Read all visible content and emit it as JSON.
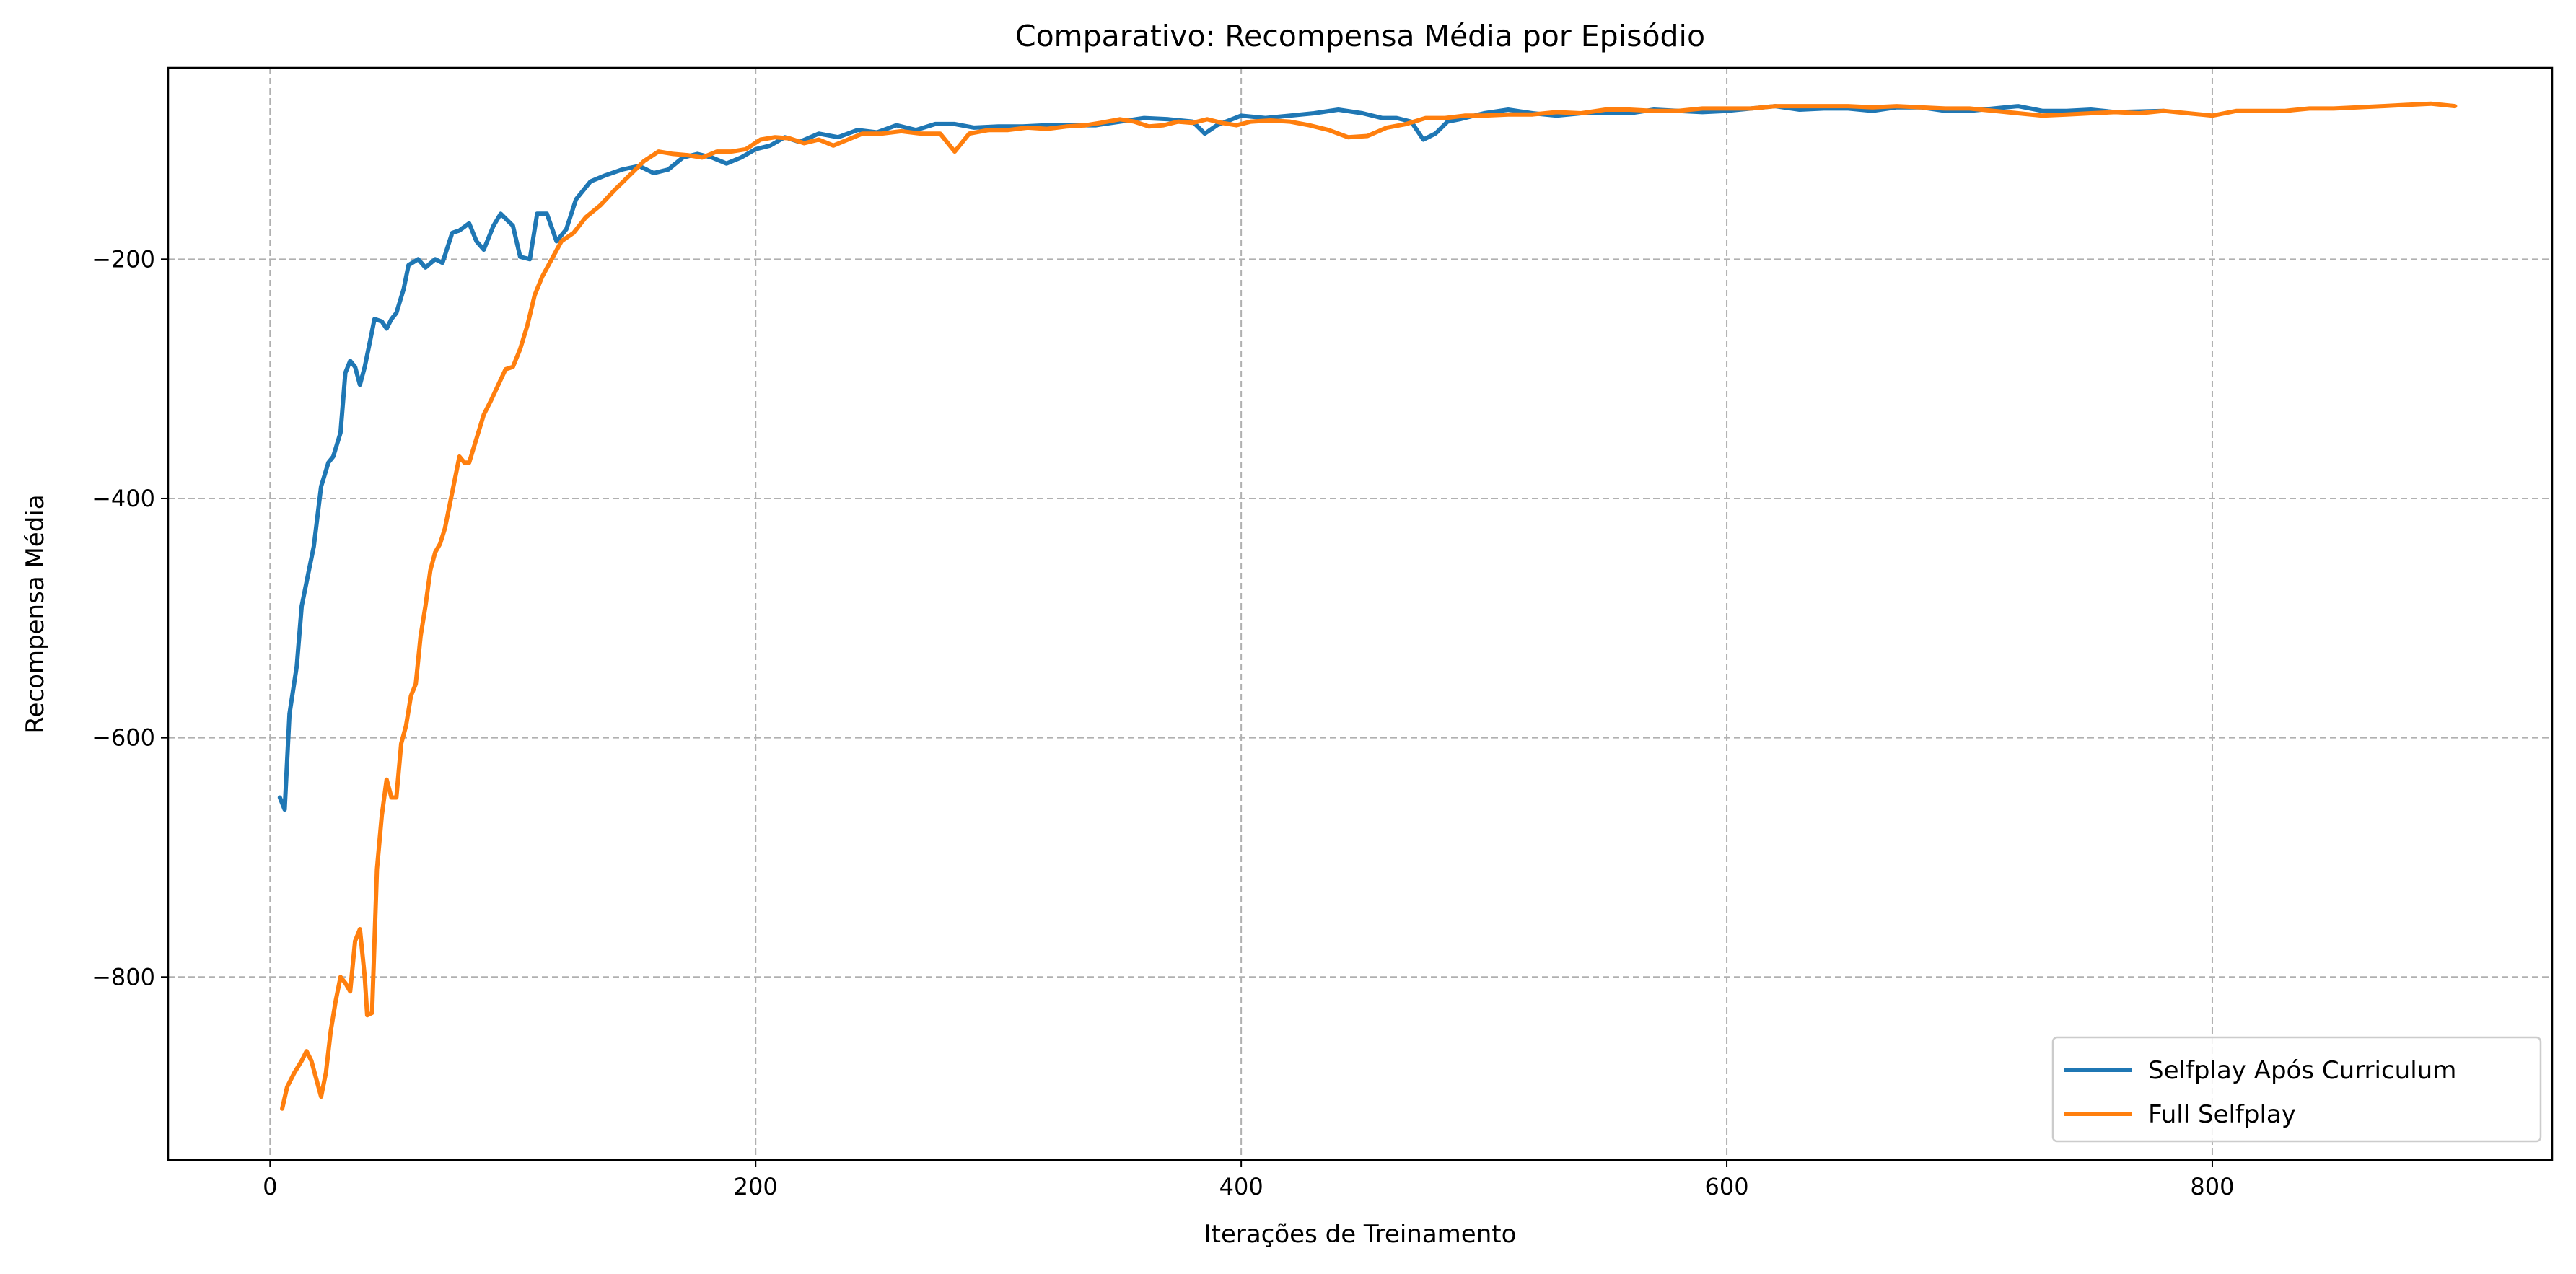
{
  "chart_data": {
    "type": "line",
    "title": "Comparativo: Recompensa Média por Episódio",
    "xlabel": "Iterações de Treinamento",
    "ylabel": "Recompensa Média",
    "xlim": [
      -42,
      940
    ],
    "ylim": [
      -953,
      -40
    ],
    "xticks": [
      0,
      200,
      400,
      600,
      800
    ],
    "yticks": [
      -800,
      -600,
      -400,
      -200
    ],
    "grid": true,
    "legend_position": "lower-right",
    "series": [
      {
        "name": "Selfplay Após Curriculum",
        "color": "#1f77b4",
        "points": [
          [
            4,
            -650
          ],
          [
            6,
            -660
          ],
          [
            8,
            -580
          ],
          [
            11,
            -540
          ],
          [
            13,
            -490
          ],
          [
            16,
            -460
          ],
          [
            18,
            -440
          ],
          [
            21,
            -390
          ],
          [
            24,
            -370
          ],
          [
            26,
            -365
          ],
          [
            29,
            -345
          ],
          [
            31,
            -295
          ],
          [
            33,
            -285
          ],
          [
            35,
            -290
          ],
          [
            37,
            -305
          ],
          [
            39,
            -290
          ],
          [
            41,
            -270
          ],
          [
            43,
            -250
          ],
          [
            46,
            -252
          ],
          [
            48,
            -258
          ],
          [
            50,
            -250
          ],
          [
            52,
            -245
          ],
          [
            55,
            -225
          ],
          [
            57,
            -205
          ],
          [
            61,
            -200
          ],
          [
            64,
            -207
          ],
          [
            68,
            -200
          ],
          [
            71,
            -203
          ],
          [
            75,
            -178
          ],
          [
            78,
            -176
          ],
          [
            82,
            -170
          ],
          [
            85,
            -185
          ],
          [
            88,
            -192
          ],
          [
            92,
            -172
          ],
          [
            95,
            -162
          ],
          [
            100,
            -172
          ],
          [
            103,
            -198
          ],
          [
            107,
            -200
          ],
          [
            110,
            -162
          ],
          [
            114,
            -162
          ],
          [
            118,
            -185
          ],
          [
            122,
            -175
          ],
          [
            126,
            -150
          ],
          [
            132,
            -135
          ],
          [
            138,
            -130
          ],
          [
            145,
            -125
          ],
          [
            152,
            -122
          ],
          [
            158,
            -128
          ],
          [
            164,
            -125
          ],
          [
            170,
            -115
          ],
          [
            176,
            -112
          ],
          [
            182,
            -115
          ],
          [
            188,
            -120
          ],
          [
            194,
            -115
          ],
          [
            200,
            -108
          ],
          [
            206,
            -105
          ],
          [
            212,
            -98
          ],
          [
            218,
            -102
          ],
          [
            226,
            -95
          ],
          [
            234,
            -98
          ],
          [
            242,
            -92
          ],
          [
            250,
            -94
          ],
          [
            258,
            -88
          ],
          [
            266,
            -92
          ],
          [
            274,
            -87
          ],
          [
            282,
            -87
          ],
          [
            290,
            -90
          ],
          [
            300,
            -89
          ],
          [
            310,
            -89
          ],
          [
            320,
            -88
          ],
          [
            330,
            -88
          ],
          [
            340,
            -88
          ],
          [
            350,
            -85
          ],
          [
            360,
            -82
          ],
          [
            370,
            -83
          ],
          [
            380,
            -85
          ],
          [
            385,
            -95
          ],
          [
            390,
            -88
          ],
          [
            400,
            -80
          ],
          [
            410,
            -82
          ],
          [
            420,
            -80
          ],
          [
            430,
            -78
          ],
          [
            440,
            -75
          ],
          [
            450,
            -78
          ],
          [
            458,
            -82
          ],
          [
            464,
            -82
          ],
          [
            470,
            -85
          ],
          [
            475,
            -100
          ],
          [
            480,
            -95
          ],
          [
            485,
            -85
          ],
          [
            490,
            -83
          ],
          [
            500,
            -78
          ],
          [
            510,
            -75
          ],
          [
            520,
            -78
          ],
          [
            530,
            -80
          ],
          [
            540,
            -78
          ],
          [
            550,
            -78
          ],
          [
            560,
            -78
          ],
          [
            570,
            -75
          ],
          [
            580,
            -76
          ],
          [
            590,
            -77
          ],
          [
            600,
            -76
          ],
          [
            610,
            -74
          ],
          [
            620,
            -72
          ],
          [
            630,
            -75
          ],
          [
            640,
            -74
          ],
          [
            650,
            -74
          ],
          [
            660,
            -76
          ],
          [
            670,
            -73
          ],
          [
            680,
            -73
          ],
          [
            690,
            -76
          ],
          [
            700,
            -76
          ],
          [
            710,
            -74
          ],
          [
            720,
            -72
          ],
          [
            730,
            -76
          ],
          [
            740,
            -76
          ],
          [
            750,
            -75
          ],
          [
            760,
            -77
          ],
          [
            780,
            -76
          ]
        ]
      },
      {
        "name": "Full Selfplay",
        "color": "#ff7f0e",
        "points": [
          [
            5,
            -910
          ],
          [
            7,
            -892
          ],
          [
            10,
            -880
          ],
          [
            13,
            -870
          ],
          [
            15,
            -862
          ],
          [
            17,
            -870
          ],
          [
            19,
            -885
          ],
          [
            21,
            -900
          ],
          [
            23,
            -880
          ],
          [
            25,
            -845
          ],
          [
            27,
            -820
          ],
          [
            29,
            -800
          ],
          [
            31,
            -805
          ],
          [
            33,
            -812
          ],
          [
            35,
            -770
          ],
          [
            37,
            -760
          ],
          [
            39,
            -800
          ],
          [
            40,
            -832
          ],
          [
            42,
            -830
          ],
          [
            44,
            -710
          ],
          [
            46,
            -665
          ],
          [
            48,
            -635
          ],
          [
            50,
            -650
          ],
          [
            52,
            -650
          ],
          [
            54,
            -605
          ],
          [
            56,
            -590
          ],
          [
            58,
            -565
          ],
          [
            60,
            -555
          ],
          [
            62,
            -515
          ],
          [
            64,
            -490
          ],
          [
            66,
            -460
          ],
          [
            68,
            -445
          ],
          [
            70,
            -438
          ],
          [
            72,
            -425
          ],
          [
            74,
            -405
          ],
          [
            76,
            -385
          ],
          [
            78,
            -365
          ],
          [
            80,
            -370
          ],
          [
            82,
            -370
          ],
          [
            85,
            -350
          ],
          [
            88,
            -330
          ],
          [
            91,
            -318
          ],
          [
            94,
            -305
          ],
          [
            97,
            -292
          ],
          [
            100,
            -290
          ],
          [
            103,
            -275
          ],
          [
            106,
            -255
          ],
          [
            109,
            -230
          ],
          [
            112,
            -215
          ],
          [
            116,
            -200
          ],
          [
            120,
            -185
          ],
          [
            125,
            -178
          ],
          [
            130,
            -165
          ],
          [
            136,
            -155
          ],
          [
            142,
            -142
          ],
          [
            148,
            -130
          ],
          [
            154,
            -118
          ],
          [
            160,
            -110
          ],
          [
            166,
            -112
          ],
          [
            172,
            -113
          ],
          [
            178,
            -115
          ],
          [
            184,
            -110
          ],
          [
            190,
            -110
          ],
          [
            196,
            -108
          ],
          [
            202,
            -100
          ],
          [
            208,
            -98
          ],
          [
            214,
            -99
          ],
          [
            220,
            -103
          ],
          [
            226,
            -100
          ],
          [
            232,
            -105
          ],
          [
            238,
            -100
          ],
          [
            244,
            -95
          ],
          [
            252,
            -95
          ],
          [
            260,
            -93
          ],
          [
            268,
            -95
          ],
          [
            276,
            -95
          ],
          [
            282,
            -110
          ],
          [
            288,
            -95
          ],
          [
            296,
            -92
          ],
          [
            304,
            -92
          ],
          [
            312,
            -90
          ],
          [
            320,
            -91
          ],
          [
            328,
            -89
          ],
          [
            336,
            -88
          ],
          [
            342,
            -86
          ],
          [
            350,
            -83
          ],
          [
            356,
            -85
          ],
          [
            362,
            -89
          ],
          [
            368,
            -88
          ],
          [
            374,
            -85
          ],
          [
            380,
            -86
          ],
          [
            386,
            -83
          ],
          [
            392,
            -86
          ],
          [
            398,
            -88
          ],
          [
            404,
            -85
          ],
          [
            412,
            -84
          ],
          [
            420,
            -85
          ],
          [
            428,
            -88
          ],
          [
            436,
            -92
          ],
          [
            444,
            -98
          ],
          [
            452,
            -97
          ],
          [
            460,
            -90
          ],
          [
            468,
            -87
          ],
          [
            476,
            -82
          ],
          [
            484,
            -82
          ],
          [
            492,
            -80
          ],
          [
            500,
            -80
          ],
          [
            510,
            -79
          ],
          [
            520,
            -79
          ],
          [
            530,
            -77
          ],
          [
            540,
            -78
          ],
          [
            550,
            -75
          ],
          [
            560,
            -75
          ],
          [
            570,
            -76
          ],
          [
            580,
            -76
          ],
          [
            590,
            -74
          ],
          [
            600,
            -74
          ],
          [
            610,
            -74
          ],
          [
            620,
            -72
          ],
          [
            630,
            -72
          ],
          [
            640,
            -72
          ],
          [
            650,
            -72
          ],
          [
            660,
            -73
          ],
          [
            670,
            -72
          ],
          [
            680,
            -73
          ],
          [
            690,
            -74
          ],
          [
            700,
            -74
          ],
          [
            710,
            -76
          ],
          [
            720,
            -78
          ],
          [
            730,
            -80
          ],
          [
            740,
            -79
          ],
          [
            750,
            -78
          ],
          [
            760,
            -77
          ],
          [
            770,
            -78
          ],
          [
            780,
            -76
          ],
          [
            790,
            -78
          ],
          [
            800,
            -80
          ],
          [
            810,
            -76
          ],
          [
            820,
            -76
          ],
          [
            830,
            -76
          ],
          [
            840,
            -74
          ],
          [
            850,
            -74
          ],
          [
            860,
            -73
          ],
          [
            870,
            -72
          ],
          [
            880,
            -71
          ],
          [
            890,
            -70
          ],
          [
            900,
            -72
          ]
        ]
      }
    ]
  }
}
